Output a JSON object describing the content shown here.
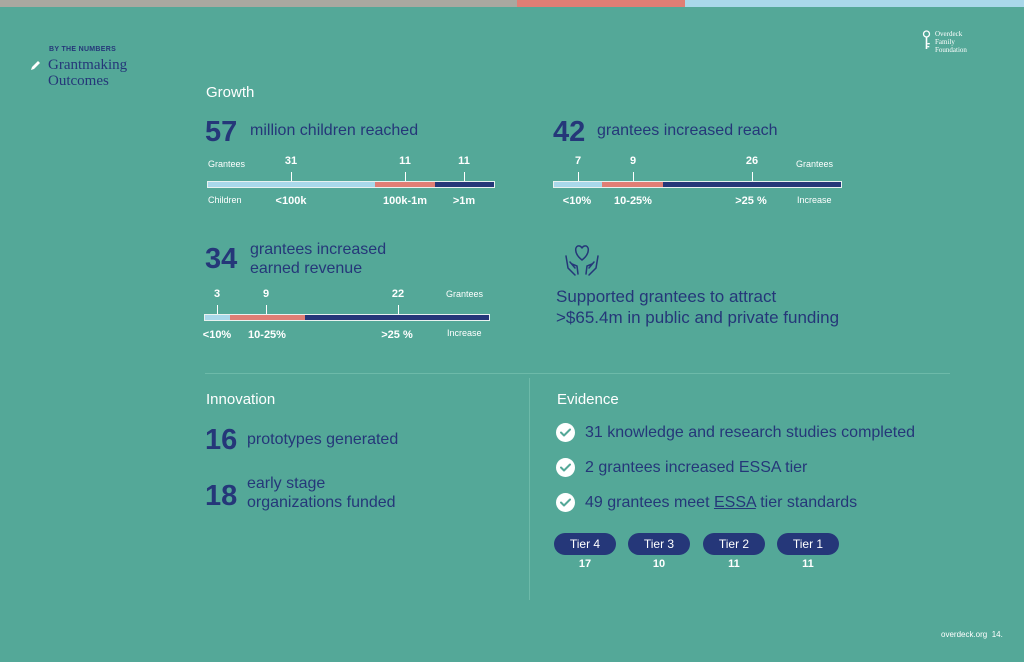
{
  "colors": {
    "background": "#54a898",
    "navy": "#253779",
    "light_blue": "#a9d8ea",
    "salmon": "#e07e75",
    "top_gray": "#a9a8a0"
  },
  "header": {
    "kicker": "BY THE NUMBERS",
    "title_line1": "Grantmaking",
    "title_line2": "Outcomes",
    "pencil_icon": "pencil-icon"
  },
  "logo": {
    "line1": "Overdeck",
    "line2": "Family",
    "line3": "Foundation",
    "icon": "key-logo-icon"
  },
  "growth": {
    "heading": "Growth",
    "children": {
      "number": "57",
      "text": "million children reached",
      "top_label": "Grantees",
      "bottom_label": "Children",
      "segments": [
        {
          "count": "31",
          "category": "<100k",
          "share": 31
        },
        {
          "count": "11",
          "category": "100k-1m",
          "share": 11
        },
        {
          "count": "11",
          "category": ">1m",
          "share": 11
        }
      ]
    },
    "reach": {
      "number": "42",
      "text": "grantees increased reach",
      "top_label": "Grantees",
      "bottom_label": "Increase",
      "segments": [
        {
          "count": "7",
          "category": "<10%",
          "share": 7
        },
        {
          "count": "9",
          "category": "10-25%",
          "share": 9
        },
        {
          "count": "26",
          "category": ">25 %",
          "share": 26
        }
      ]
    },
    "revenue": {
      "number": "34",
      "text_line1": "grantees increased",
      "text_line2": "earned revenue",
      "top_label": "Grantees",
      "bottom_label": "Increase",
      "segments": [
        {
          "count": "3",
          "category": "<10%",
          "share": 3
        },
        {
          "count": "9",
          "category": "10-25%",
          "share": 9
        },
        {
          "count": "22",
          "category": ">25 %",
          "share": 22
        }
      ]
    },
    "funding": {
      "text_line1": "Supported grantees to attract",
      "text_line2": ">$65.4m in public and private funding",
      "icon": "hands-heart-icon"
    }
  },
  "innovation": {
    "heading": "Innovation",
    "prototypes": {
      "number": "16",
      "text": "prototypes generated"
    },
    "early": {
      "number": "18",
      "text_line1": "early stage",
      "text_line2": "organizations funded"
    }
  },
  "evidence": {
    "heading": "Evidence",
    "items": [
      {
        "text": "31 knowledge and research studies completed"
      },
      {
        "text": "2 grantees increased ESSA tier"
      },
      {
        "prefix": "49 grantees meet ",
        "link": "ESSA",
        "suffix": " tier standards"
      }
    ],
    "tiers": [
      {
        "label": "Tier 4",
        "count": "17"
      },
      {
        "label": "Tier 3",
        "count": "10"
      },
      {
        "label": "Tier 2",
        "count": "11"
      },
      {
        "label": "Tier 1",
        "count": "11"
      }
    ]
  },
  "footer": {
    "site": "overdeck.org",
    "page": "14."
  }
}
